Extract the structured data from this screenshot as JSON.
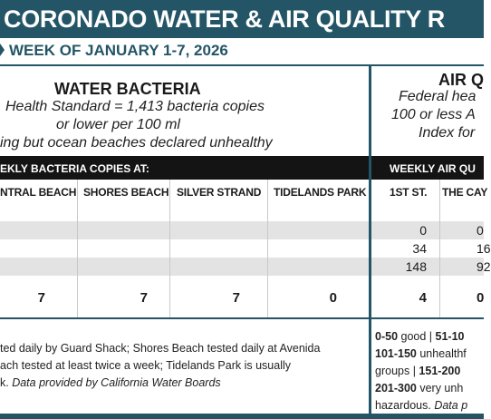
{
  "header": {
    "title": "CORONADO WATER & AIR QUALITY R",
    "subtitle": "WEEK OF JANUARY 1-7, 2026"
  },
  "water": {
    "title": "WATER BACTERIA",
    "lines": [
      "Health Standard  = 1,413 bacteria copies",
      "or lower per 100 ml",
      "ing but ocean beaches declared unhealthy"
    ]
  },
  "air": {
    "title": "AIR Q",
    "lines": [
      "Federal hea",
      "100 or less A",
      "Index for"
    ]
  },
  "table": {
    "water_header": "EKLY BACTERIA COPIES AT:",
    "air_header": "WEEKLY AIR QU",
    "columns": [
      "NTRAL BEACH",
      "SHORES BEACH",
      "SILVER STRAND",
      "TIDELANDS PARK",
      "1ST ST.",
      "THE CAY"
    ],
    "rows": [
      [
        null,
        null,
        null,
        null,
        null,
        null
      ],
      [
        null,
        null,
        null,
        null,
        0,
        0
      ],
      [
        null,
        null,
        null,
        null,
        34,
        16
      ],
      [
        null,
        null,
        null,
        null,
        148,
        92
      ],
      [
        7,
        7,
        7,
        0,
        4,
        0
      ]
    ]
  },
  "footer": {
    "water_lines": [
      [
        {
          "text": "ted daily by Guard Shack; Shores Beach tested daily at Avenida"
        }
      ],
      [
        {
          "text": "ach tested at least twice a week; Tidelands Park is usually"
        }
      ],
      [
        {
          "text": "k. "
        },
        {
          "text": "Data provided by California Water Boards",
          "italic": true
        }
      ]
    ],
    "air_lines": [
      [
        {
          "text": "0-50",
          "bold": true
        },
        {
          "text": " good | "
        },
        {
          "text": "51-10",
          "bold": true
        }
      ],
      [
        {
          "text": "101-150",
          "bold": true
        },
        {
          "text": " unhealthf"
        }
      ],
      [
        {
          "text": "groups | "
        },
        {
          "text": "151-200",
          "bold": true
        }
      ],
      [
        {
          "text": "201-300",
          "bold": true
        },
        {
          "text": " very unh"
        }
      ],
      [
        {
          "text": "hazardous. "
        },
        {
          "text": "Data p",
          "italic": true
        }
      ]
    ]
  }
}
